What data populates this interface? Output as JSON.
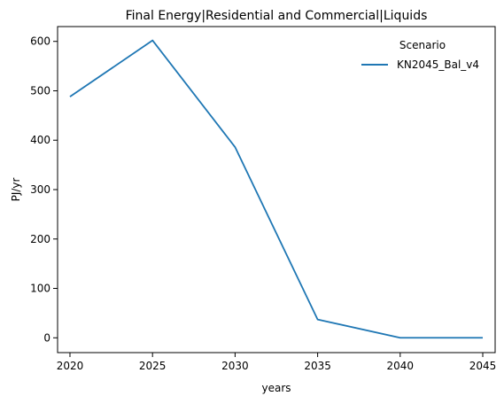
{
  "chart_data": {
    "type": "line",
    "title": "Final Energy|Residential and Commercial|Liquids",
    "xlabel": "years",
    "ylabel": "PJ/yr",
    "x": [
      2020,
      2025,
      2030,
      2035,
      2040,
      2045
    ],
    "xticks": [
      "2020",
      "2025",
      "2030",
      "2035",
      "2040",
      "2045"
    ],
    "yticks": [
      "0",
      "100",
      "200",
      "300",
      "400",
      "500",
      "600"
    ],
    "xlim": [
      2019.25,
      2045.75
    ],
    "ylim": [
      -30,
      630
    ],
    "grid": false,
    "legend": {
      "title": "Scenario",
      "placement": "top-right"
    },
    "series": [
      {
        "name": "KN2045_Bal_v4",
        "color": "#1f77b4",
        "values": [
          488,
          602,
          386,
          37,
          0,
          0
        ]
      }
    ]
  }
}
